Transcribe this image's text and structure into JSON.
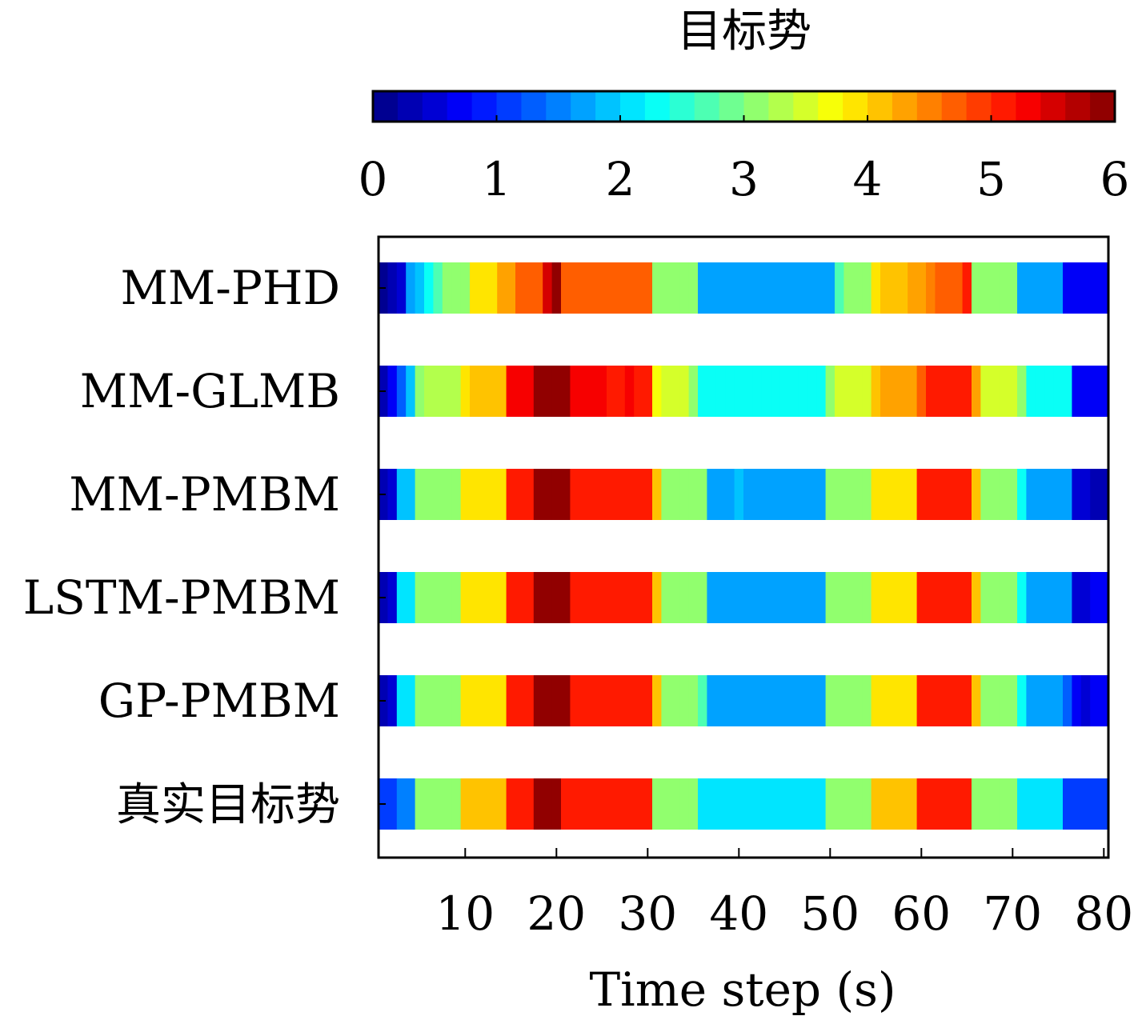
{
  "chart_data": {
    "type": "heatmap",
    "title": "",
    "xlabel": "Time step (s)",
    "ylabel": "",
    "colorbar": {
      "title": "目标势",
      "min": 0,
      "max": 6,
      "levels": 30,
      "colormap": "jet",
      "tick_values": [
        0,
        1,
        2,
        3,
        4,
        5,
        6
      ],
      "tick_labels": [
        "0",
        "1",
        "2",
        "3",
        "4",
        "5",
        "6"
      ]
    },
    "x_range": [
      0.5,
      80.5
    ],
    "x_tick_values": [
      10,
      20,
      30,
      40,
      50,
      60,
      70,
      80
    ],
    "x_tick_labels": [
      "10",
      "20",
      "30",
      "40",
      "50",
      "60",
      "70",
      "80"
    ],
    "grid": false,
    "rows": [
      "MM-PHD",
      "MM-GLMB",
      "MM-PMBM",
      "LSTM-PMBM",
      "GP-PMBM",
      "真实目标势"
    ],
    "values": [
      [
        0.1,
        0.3,
        0.5,
        1.6,
        1.9,
        2.4,
        2.7,
        3.0,
        3.0,
        3.0,
        3.9,
        3.9,
        3.9,
        4.2,
        4.2,
        4.7,
        4.7,
        4.7,
        5.4,
        5.9,
        4.7,
        4.7,
        4.7,
        4.7,
        4.7,
        4.7,
        4.7,
        4.7,
        4.7,
        4.8,
        3.0,
        3.0,
        3.0,
        3.0,
        3.0,
        1.6,
        1.6,
        1.6,
        1.6,
        1.6,
        1.6,
        1.6,
        1.6,
        1.6,
        1.6,
        1.6,
        1.6,
        1.6,
        1.6,
        1.6,
        2.6,
        3.0,
        3.0,
        3.0,
        3.9,
        4.1,
        4.1,
        4.1,
        4.2,
        4.2,
        4.4,
        4.8,
        4.8,
        4.8,
        5.1,
        3.0,
        3.0,
        3.0,
        3.0,
        3.0,
        1.6,
        1.6,
        1.6,
        1.6,
        1.6,
        0.7,
        0.7,
        0.7,
        0.7,
        0.7
      ],
      [
        0.3,
        0.7,
        1.3,
        1.8,
        3.0,
        3.3,
        3.3,
        3.3,
        3.3,
        3.8,
        4.1,
        4.1,
        4.1,
        4.1,
        5.2,
        5.2,
        5.3,
        5.9,
        5.9,
        5.9,
        5.9,
        5.3,
        5.3,
        5.3,
        5.3,
        5.0,
        5.0,
        5.2,
        5.0,
        5.0,
        3.7,
        3.4,
        3.4,
        3.4,
        3.0,
        2.3,
        2.3,
        2.3,
        2.3,
        2.3,
        2.3,
        2.3,
        2.3,
        2.3,
        2.3,
        2.3,
        2.3,
        2.3,
        2.3,
        3.0,
        3.4,
        3.4,
        3.4,
        3.4,
        4.1,
        4.2,
        4.2,
        4.2,
        4.3,
        4.6,
        5.0,
        5.0,
        5.0,
        5.0,
        5.0,
        4.3,
        3.5,
        3.5,
        3.5,
        3.5,
        3.0,
        2.3,
        2.3,
        2.3,
        2.3,
        2.3,
        0.7,
        0.7,
        0.7,
        0.7
      ],
      [
        0.3,
        0.5,
        1.8,
        1.8,
        3.0,
        3.0,
        3.0,
        3.0,
        3.0,
        3.9,
        3.9,
        3.9,
        3.9,
        3.9,
        5.0,
        5.0,
        5.0,
        5.9,
        5.9,
        5.9,
        5.9,
        5.0,
        5.0,
        5.0,
        5.0,
        5.0,
        5.0,
        5.0,
        5.0,
        5.0,
        4.1,
        3.0,
        3.0,
        3.0,
        3.0,
        3.0,
        1.6,
        1.6,
        1.6,
        1.8,
        1.6,
        1.6,
        1.6,
        1.6,
        1.6,
        1.6,
        1.6,
        1.6,
        1.6,
        3.0,
        3.0,
        3.0,
        3.0,
        3.0,
        3.9,
        3.9,
        3.9,
        3.9,
        3.9,
        5.0,
        5.0,
        5.0,
        5.0,
        5.0,
        5.0,
        4.1,
        3.0,
        3.0,
        3.0,
        3.0,
        2.3,
        1.6,
        1.6,
        1.6,
        1.6,
        1.6,
        0.6,
        0.6,
        0.3,
        0.3
      ],
      [
        0.3,
        0.5,
        2.1,
        2.1,
        3.0,
        3.0,
        3.0,
        3.0,
        3.0,
        3.9,
        3.9,
        3.9,
        3.9,
        3.9,
        5.0,
        5.0,
        5.0,
        5.9,
        5.9,
        5.9,
        5.9,
        5.0,
        5.0,
        5.0,
        5.0,
        5.0,
        5.0,
        5.0,
        5.0,
        5.0,
        4.1,
        3.0,
        3.0,
        3.0,
        3.0,
        3.0,
        1.6,
        1.6,
        1.6,
        1.6,
        1.6,
        1.6,
        1.6,
        1.6,
        1.6,
        1.6,
        1.6,
        1.6,
        1.6,
        3.0,
        3.0,
        3.0,
        3.0,
        3.0,
        3.9,
        3.9,
        3.9,
        3.9,
        3.9,
        5.0,
        5.0,
        5.0,
        5.0,
        5.0,
        5.0,
        4.1,
        3.0,
        3.0,
        3.0,
        3.0,
        2.3,
        1.6,
        1.6,
        1.6,
        1.6,
        1.6,
        0.5,
        0.5,
        0.7,
        0.7
      ],
      [
        0.3,
        0.5,
        2.1,
        2.1,
        3.0,
        3.0,
        3.0,
        3.0,
        3.0,
        3.9,
        3.9,
        3.9,
        3.9,
        3.9,
        5.0,
        5.0,
        5.0,
        5.9,
        5.9,
        5.9,
        5.9,
        5.0,
        5.0,
        5.0,
        5.0,
        5.0,
        5.0,
        5.0,
        5.0,
        5.0,
        4.1,
        3.0,
        3.0,
        3.0,
        3.0,
        2.7,
        1.6,
        1.6,
        1.6,
        1.6,
        1.6,
        1.6,
        1.6,
        1.6,
        1.6,
        1.6,
        1.6,
        1.6,
        1.6,
        3.0,
        3.0,
        3.0,
        3.0,
        3.0,
        3.9,
        3.9,
        3.9,
        3.9,
        3.9,
        5.0,
        5.0,
        5.0,
        5.0,
        5.0,
        5.0,
        4.1,
        3.0,
        3.0,
        3.0,
        3.0,
        2.3,
        1.6,
        1.6,
        1.6,
        1.6,
        1.3,
        0.7,
        0.5,
        0.7,
        0.7
      ],
      [
        1.0,
        1.0,
        1.5,
        1.5,
        3.0,
        3.0,
        3.0,
        3.0,
        3.0,
        4.0,
        4.0,
        4.0,
        4.0,
        4.0,
        5.0,
        5.0,
        5.0,
        6.0,
        6.0,
        6.0,
        5.0,
        5.0,
        5.0,
        5.0,
        5.0,
        5.0,
        5.0,
        5.0,
        5.0,
        5.0,
        3.0,
        3.0,
        3.0,
        3.0,
        3.0,
        2.0,
        2.0,
        2.0,
        2.0,
        2.0,
        2.0,
        2.0,
        2.0,
        2.0,
        2.0,
        2.0,
        2.0,
        2.0,
        2.0,
        3.0,
        3.0,
        3.0,
        3.0,
        3.0,
        4.0,
        4.0,
        4.0,
        4.0,
        4.0,
        5.0,
        5.0,
        5.0,
        5.0,
        5.0,
        5.0,
        3.0,
        3.0,
        3.0,
        3.0,
        3.0,
        2.0,
        2.0,
        2.0,
        2.0,
        2.0,
        1.0,
        1.0,
        1.0,
        1.0,
        1.0
      ]
    ]
  }
}
